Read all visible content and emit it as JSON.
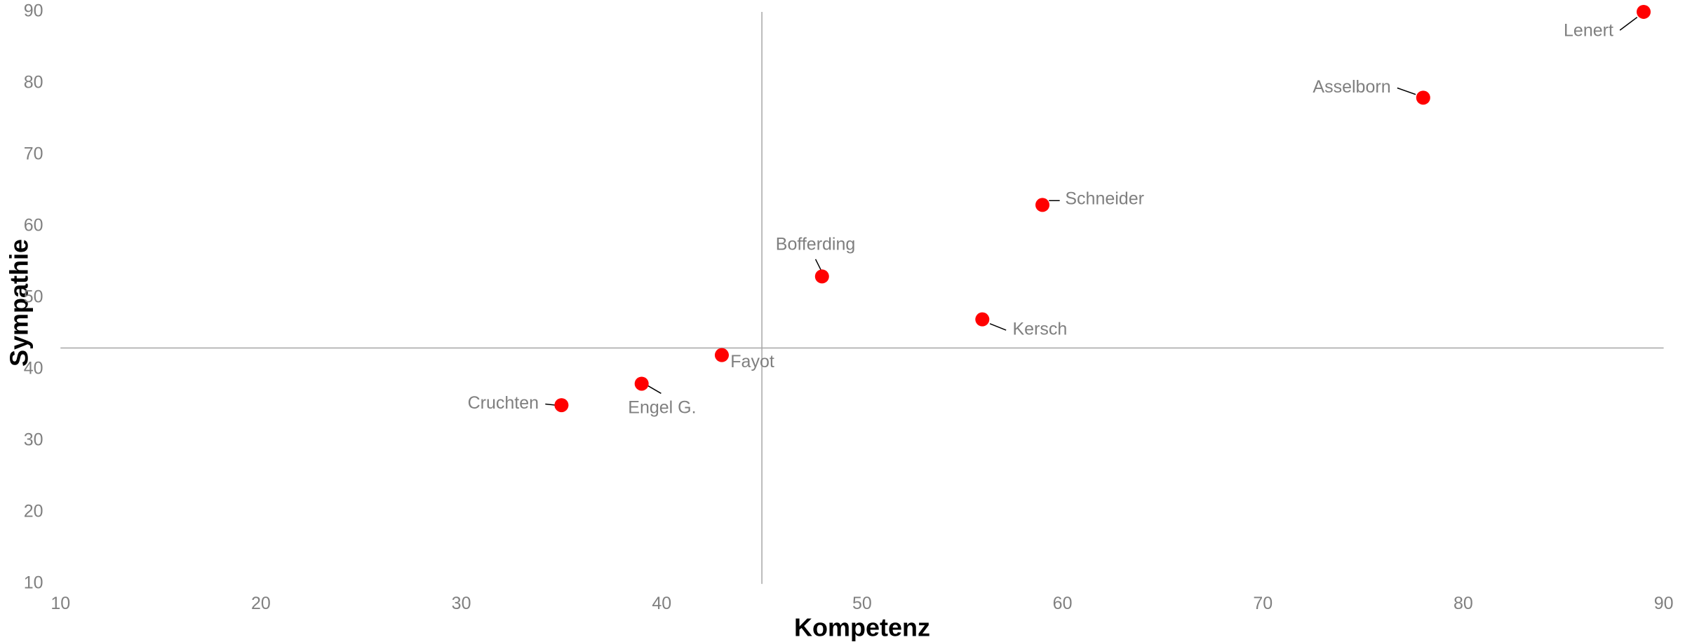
{
  "chart_data": {
    "type": "scatter",
    "xlabel": "Kompetenz",
    "ylabel": "Sympathie",
    "series": [
      {
        "color": "#ff0000",
        "labels": [
          "Lenert",
          "Asselborn",
          "Schneider",
          "Bofferding",
          "Kersch",
          "Fayot",
          "Engel G.",
          "Cruchten"
        ],
        "x": [
          89,
          78,
          59,
          48,
          56,
          43,
          39,
          35
        ],
        "values": [
          90,
          78,
          63,
          53,
          47,
          42,
          38,
          35
        ]
      }
    ],
    "reference_lines": {
      "x": 45,
      "y": 43
    },
    "xlim": [
      10,
      90
    ],
    "xticks": [
      10,
      20,
      30,
      40,
      50,
      60,
      70,
      80,
      90
    ],
    "ylim": [
      10,
      90
    ],
    "yticks": [
      10,
      20,
      30,
      40,
      50,
      60,
      70,
      80,
      90
    ]
  }
}
